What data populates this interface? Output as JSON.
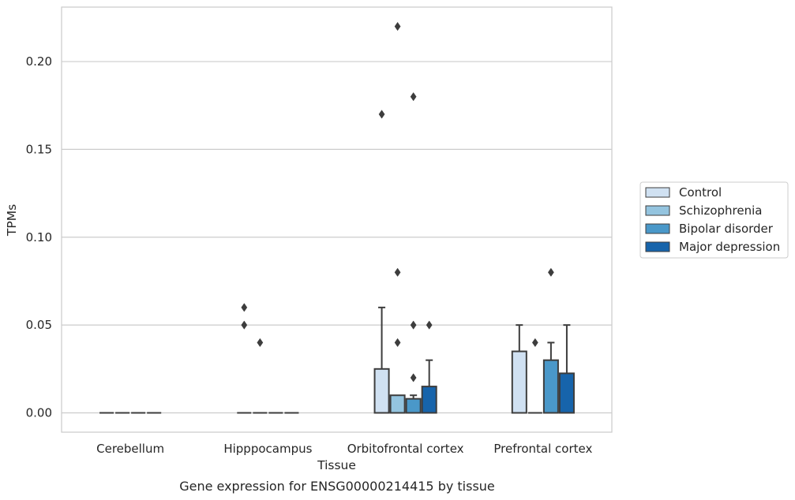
{
  "chart_data": {
    "type": "box",
    "title": "",
    "caption": "Gene expression for ENSG00000214415 by tissue",
    "xlabel": "Tissue",
    "ylabel": "TPMs",
    "ylim": [
      -0.011,
      0.231
    ],
    "yticks": [
      "0.00",
      "0.05",
      "0.10",
      "0.15",
      "0.20"
    ],
    "grid": true,
    "legend_position": "right",
    "categories": [
      "Cerebellum",
      "Hipppocampus",
      "Orbitofrontal cortex",
      "Prefrontal cortex"
    ],
    "series": [
      {
        "name": "Control",
        "color": "#d0e1f2",
        "boxes": [
          {
            "q1": 0,
            "median": 0,
            "q3": 0,
            "whisker_low": 0,
            "whisker_high": 0,
            "outliers": []
          },
          {
            "q1": 0,
            "median": 0,
            "q3": 0,
            "whisker_low": 0,
            "whisker_high": 0,
            "outliers": [
              0.06,
              0.05
            ]
          },
          {
            "q1": 0,
            "median": 0,
            "q3": 0.025,
            "whisker_low": 0,
            "whisker_high": 0.06,
            "outliers": [
              0.17
            ]
          },
          {
            "q1": 0,
            "median": 0,
            "q3": 0.035,
            "whisker_low": 0,
            "whisker_high": 0.05,
            "outliers": []
          }
        ]
      },
      {
        "name": "Schizophrenia",
        "color": "#94c4df",
        "boxes": [
          {
            "q1": 0,
            "median": 0,
            "q3": 0,
            "whisker_low": 0,
            "whisker_high": 0,
            "outliers": []
          },
          {
            "q1": 0,
            "median": 0,
            "q3": 0,
            "whisker_low": 0,
            "whisker_high": 0,
            "outliers": [
              0.04
            ]
          },
          {
            "q1": 0,
            "median": 0,
            "q3": 0.01,
            "whisker_low": 0,
            "whisker_high": 0.01,
            "outliers": [
              0.22,
              0.08,
              0.04
            ]
          },
          {
            "q1": 0,
            "median": 0,
            "q3": 0,
            "whisker_low": 0,
            "whisker_high": 0,
            "outliers": [
              0.04
            ]
          }
        ]
      },
      {
        "name": "Bipolar disorder",
        "color": "#4a98c9",
        "boxes": [
          {
            "q1": 0,
            "median": 0,
            "q3": 0,
            "whisker_low": 0,
            "whisker_high": 0,
            "outliers": []
          },
          {
            "q1": 0,
            "median": 0,
            "q3": 0,
            "whisker_low": 0,
            "whisker_high": 0,
            "outliers": []
          },
          {
            "q1": 0,
            "median": 0,
            "q3": 0.008,
            "whisker_low": 0,
            "whisker_high": 0.01,
            "outliers": [
              0.18,
              0.05,
              0.02
            ]
          },
          {
            "q1": 0,
            "median": 0,
            "q3": 0.03,
            "whisker_low": 0,
            "whisker_high": 0.04,
            "outliers": [
              0.08
            ]
          }
        ]
      },
      {
        "name": "Major depression",
        "color": "#1764ab",
        "boxes": [
          {
            "q1": 0,
            "median": 0,
            "q3": 0,
            "whisker_low": 0,
            "whisker_high": 0,
            "outliers": []
          },
          {
            "q1": 0,
            "median": 0,
            "q3": 0,
            "whisker_low": 0,
            "whisker_high": 0,
            "outliers": []
          },
          {
            "q1": 0,
            "median": 0,
            "q3": 0.015,
            "whisker_low": 0,
            "whisker_high": 0.03,
            "outliers": [
              0.05
            ]
          },
          {
            "q1": 0,
            "median": 0,
            "q3": 0.0225,
            "whisker_low": 0,
            "whisker_high": 0.05,
            "outliers": []
          }
        ]
      }
    ]
  }
}
